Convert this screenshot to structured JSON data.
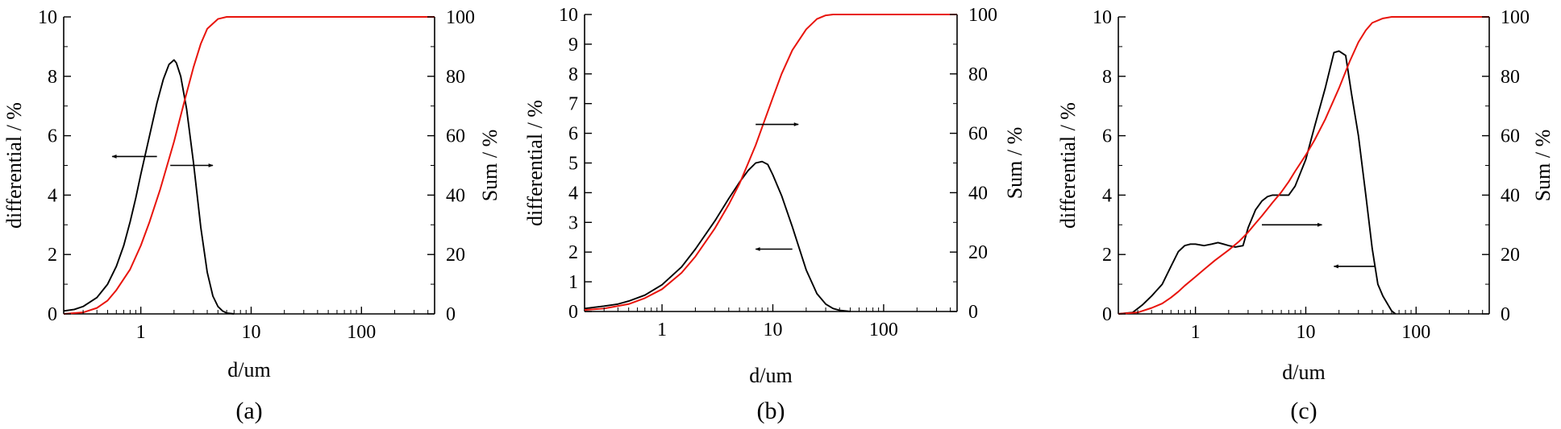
{
  "figure": {
    "panels": [
      "(a)",
      "(b)",
      "(c)"
    ]
  },
  "colors": {
    "differential": "#000000",
    "sum": "#e8140c"
  },
  "chart_data": [
    {
      "type": "line",
      "panel_label": "(a)",
      "xlabel": "d/um",
      "ylabel_left": "differential / %",
      "ylabel_right": "Sum / %",
      "x_scale": "log",
      "xlim": [
        0.2,
        460
      ],
      "ylim_left": [
        0,
        10
      ],
      "ylim_right": [
        0,
        100
      ],
      "x_ticks": [
        {
          "value": 1,
          "label": "1"
        },
        {
          "value": 10,
          "label": "10"
        },
        {
          "value": 100,
          "label": "100"
        }
      ],
      "y_left_ticks": [
        {
          "value": 0,
          "label": "0"
        },
        {
          "value": 2,
          "label": "2"
        },
        {
          "value": 4,
          "label": "4"
        },
        {
          "value": 6,
          "label": "6"
        },
        {
          "value": 8,
          "label": "8"
        },
        {
          "value": 10,
          "label": "10"
        }
      ],
      "y_right_ticks": [
        {
          "value": 0,
          "label": "0"
        },
        {
          "value": 20,
          "label": "20"
        },
        {
          "value": 40,
          "label": "40"
        },
        {
          "value": 60,
          "label": "60"
        },
        {
          "value": 80,
          "label": "80"
        },
        {
          "value": 100,
          "label": "100"
        }
      ],
      "series": [
        {
          "name": "differential",
          "axis": "left",
          "color": "#000000",
          "x": [
            0.2,
            0.25,
            0.3,
            0.4,
            0.5,
            0.6,
            0.7,
            0.8,
            0.9,
            1.0,
            1.2,
            1.4,
            1.6,
            1.8,
            2.0,
            2.1,
            2.3,
            2.6,
            3.0,
            3.5,
            4.0,
            4.5,
            5.0,
            5.5,
            6.0,
            7.0
          ],
          "y": [
            0.1,
            0.15,
            0.25,
            0.55,
            1.0,
            1.6,
            2.3,
            3.1,
            3.9,
            4.7,
            6.0,
            7.1,
            7.9,
            8.4,
            8.55,
            8.45,
            8.0,
            6.9,
            5.1,
            2.9,
            1.4,
            0.6,
            0.25,
            0.1,
            0.03,
            0.0
          ]
        },
        {
          "name": "sum",
          "axis": "right",
          "color": "#e8140c",
          "x": [
            0.2,
            0.3,
            0.4,
            0.5,
            0.6,
            0.8,
            1.0,
            1.2,
            1.5,
            2.0,
            2.5,
            3.0,
            3.5,
            4.0,
            5.0,
            6.0,
            8.0,
            10,
            460
          ],
          "y": [
            0,
            0.5,
            2,
            4.5,
            8,
            15,
            23,
            31,
            42,
            58,
            72,
            83,
            91,
            96,
            99.3,
            100,
            100,
            100,
            100
          ]
        }
      ],
      "annotations": [
        {
          "direction": "left",
          "x_from": 1.4,
          "x_to": 0.55,
          "y_right": 53
        },
        {
          "direction": "right",
          "x_from": 1.85,
          "x_to": 4.5,
          "y_right": 50
        }
      ]
    },
    {
      "type": "line",
      "panel_label": "(b)",
      "xlabel": "d/um",
      "ylabel_left": "differential / %",
      "ylabel_right": "Sum / %",
      "x_scale": "log",
      "xlim": [
        0.2,
        460
      ],
      "ylim_left": [
        0,
        10
      ],
      "ylim_right": [
        0,
        100
      ],
      "x_ticks": [
        {
          "value": 1,
          "label": "1"
        },
        {
          "value": 10,
          "label": "10"
        },
        {
          "value": 100,
          "label": "100"
        }
      ],
      "y_left_ticks": [
        {
          "value": 0,
          "label": "0"
        },
        {
          "value": 1,
          "label": "1"
        },
        {
          "value": 2,
          "label": "2"
        },
        {
          "value": 3,
          "label": "3"
        },
        {
          "value": 4,
          "label": "4"
        },
        {
          "value": 5,
          "label": "5"
        },
        {
          "value": 6,
          "label": "6"
        },
        {
          "value": 7,
          "label": "7"
        },
        {
          "value": 8,
          "label": "8"
        },
        {
          "value": 9,
          "label": "9"
        },
        {
          "value": 10,
          "label": "10"
        }
      ],
      "y_right_ticks": [
        {
          "value": 0,
          "label": "0"
        },
        {
          "value": 20,
          "label": "20"
        },
        {
          "value": 40,
          "label": "40"
        },
        {
          "value": 60,
          "label": "60"
        },
        {
          "value": 80,
          "label": "80"
        },
        {
          "value": 100,
          "label": "100"
        }
      ],
      "series": [
        {
          "name": "differential",
          "axis": "left",
          "color": "#000000",
          "x": [
            0.2,
            0.3,
            0.4,
            0.5,
            0.7,
            1.0,
            1.5,
            2.0,
            3.0,
            4.0,
            5.0,
            6.0,
            7.0,
            8.0,
            9.0,
            10,
            12,
            15,
            20,
            25,
            30,
            35,
            40,
            50
          ],
          "y": [
            0.1,
            0.18,
            0.25,
            0.35,
            0.55,
            0.9,
            1.5,
            2.1,
            3.05,
            3.8,
            4.35,
            4.75,
            5.0,
            5.05,
            4.95,
            4.6,
            3.9,
            2.85,
            1.4,
            0.6,
            0.25,
            0.1,
            0.04,
            0.0
          ]
        },
        {
          "name": "sum",
          "axis": "right",
          "color": "#e8140c",
          "x": [
            0.2,
            0.3,
            0.5,
            0.7,
            1.0,
            1.5,
            2.0,
            3.0,
            4.0,
            5.0,
            6.0,
            7.0,
            8.0,
            10,
            12,
            15,
            20,
            25,
            30,
            35,
            460
          ],
          "y": [
            0.5,
            1,
            2.5,
            4.5,
            7.5,
            13,
            18.5,
            28,
            36,
            43,
            50,
            56,
            62,
            72,
            80,
            88,
            95,
            98.5,
            99.7,
            100,
            100
          ]
        }
      ],
      "annotations": [
        {
          "direction": "right",
          "x_from": 7.0,
          "x_to": 17.0,
          "y_right": 63
        },
        {
          "direction": "left",
          "x_from": 15.0,
          "x_to": 7.0,
          "y_right": 21
        }
      ]
    },
    {
      "type": "line",
      "panel_label": "(c)",
      "xlabel": "d/um",
      "ylabel_left": "differential / %",
      "ylabel_right": "Sum / %",
      "x_scale": "log",
      "xlim": [
        0.2,
        460
      ],
      "ylim_left": [
        0,
        10
      ],
      "ylim_right": [
        0,
        100
      ],
      "x_ticks": [
        {
          "value": 1,
          "label": "1"
        },
        {
          "value": 10,
          "label": "10"
        },
        {
          "value": 100,
          "label": "100"
        }
      ],
      "y_left_ticks": [
        {
          "value": 0,
          "label": "0"
        },
        {
          "value": 2,
          "label": "2"
        },
        {
          "value": 4,
          "label": "4"
        },
        {
          "value": 6,
          "label": "6"
        },
        {
          "value": 8,
          "label": "8"
        },
        {
          "value": 10,
          "label": "10"
        }
      ],
      "y_right_ticks": [
        {
          "value": 0,
          "label": "0"
        },
        {
          "value": 20,
          "label": "20"
        },
        {
          "value": 40,
          "label": "40"
        },
        {
          "value": 60,
          "label": "60"
        },
        {
          "value": 80,
          "label": "80"
        },
        {
          "value": 100,
          "label": "100"
        }
      ],
      "series": [
        {
          "name": "differential",
          "axis": "left",
          "color": "#000000",
          "x": [
            0.2,
            0.27,
            0.33,
            0.4,
            0.5,
            0.6,
            0.7,
            0.8,
            0.9,
            1.0,
            1.2,
            1.4,
            1.6,
            1.8,
            2.0,
            2.3,
            2.7,
            3.0,
            3.5,
            4.0,
            4.5,
            5.0,
            6.0,
            7.0,
            8.0,
            10,
            12,
            15,
            18,
            20,
            23,
            26,
            30,
            35,
            40,
            45,
            50,
            60,
            65
          ],
          "y": [
            0.0,
            0.05,
            0.3,
            0.6,
            1.0,
            1.6,
            2.1,
            2.3,
            2.35,
            2.35,
            2.3,
            2.35,
            2.4,
            2.35,
            2.3,
            2.25,
            2.3,
            2.9,
            3.5,
            3.8,
            3.95,
            4.0,
            4.0,
            4.0,
            4.3,
            5.2,
            6.3,
            7.6,
            8.8,
            8.85,
            8.7,
            7.4,
            6.0,
            4.0,
            2.2,
            1.0,
            0.6,
            0.1,
            0.0
          ]
        },
        {
          "name": "sum",
          "axis": "right",
          "color": "#e8140c",
          "x": [
            0.2,
            0.3,
            0.4,
            0.5,
            0.6,
            0.7,
            0.8,
            1.0,
            1.2,
            1.5,
            2.0,
            2.5,
            3.0,
            3.5,
            4.0,
            5.0,
            6.0,
            7.0,
            8.0,
            10,
            12,
            15,
            20,
            25,
            30,
            35,
            40,
            50,
            60,
            460
          ],
          "y": [
            0,
            0.5,
            2,
            3.5,
            5.5,
            7.5,
            9.5,
            12.5,
            15,
            18,
            21.5,
            24.5,
            27.5,
            30.5,
            33,
            37.5,
            41,
            44.5,
            48,
            53.5,
            58.5,
            65.5,
            76,
            85,
            91.5,
            95.5,
            98,
            99.5,
            100,
            100
          ]
        }
      ],
      "annotations": [
        {
          "direction": "right",
          "x_from": 4.0,
          "x_to": 14.0,
          "y_right": 30
        },
        {
          "direction": "left",
          "x_from": 42.0,
          "x_to": 18.0,
          "y_right": 16
        }
      ]
    }
  ]
}
